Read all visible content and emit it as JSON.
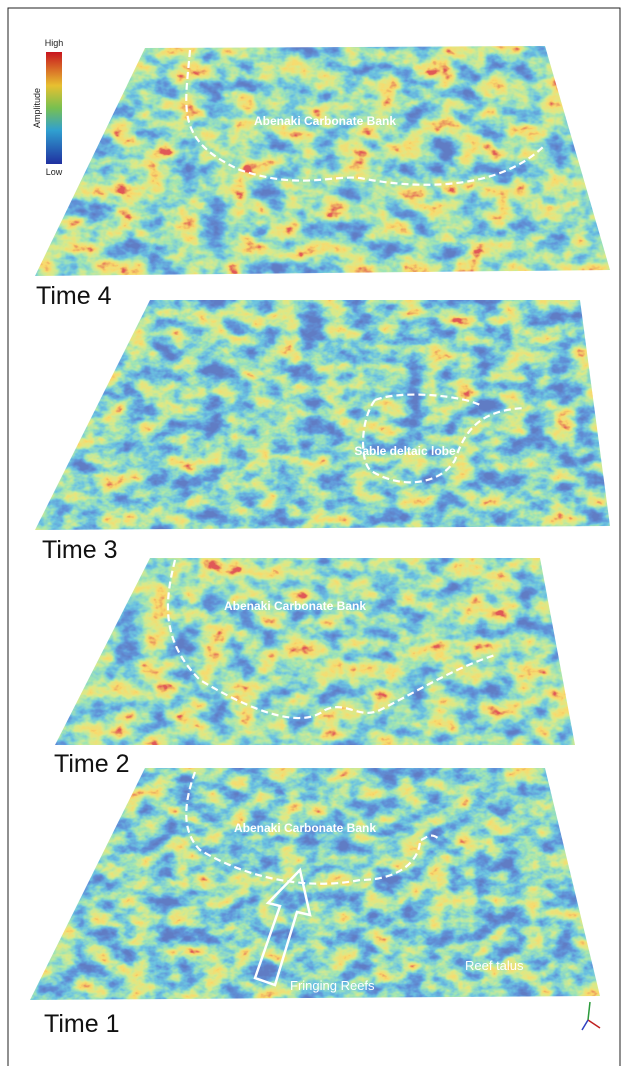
{
  "legend": {
    "high": "High",
    "low": "Low",
    "title": "Amplitude"
  },
  "panels": [
    {
      "label": "Time 4",
      "annotations": [
        "Abenaki Carbonate Bank"
      ]
    },
    {
      "label": "Time 3",
      "annotations": [
        "Sable deltaic lobe"
      ]
    },
    {
      "label": "Time 2",
      "annotations": [
        "Abenaki Carbonate Bank"
      ]
    },
    {
      "label": "Time 1",
      "annotations": [
        "Abenaki Carbonate Bank",
        "Fringing Reefs",
        "Reef talus"
      ]
    }
  ]
}
